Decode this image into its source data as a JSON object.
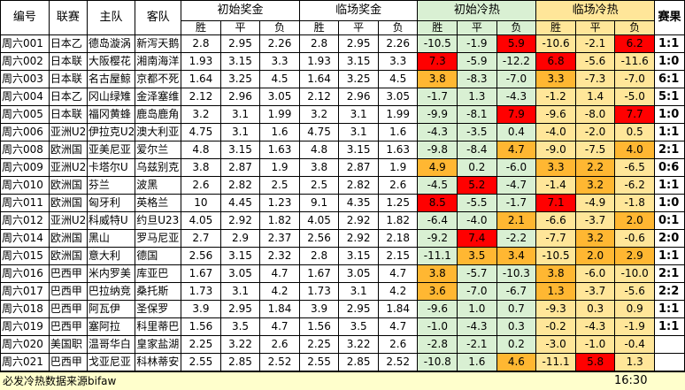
{
  "headers": {
    "id": "编号",
    "league": "联赛",
    "home": "主队",
    "away": "客队",
    "init_odds": "初始奖金",
    "live_odds": "临场奖金",
    "init_heat": "初始冷热",
    "live_heat": "临场冷热",
    "result": "赛果",
    "win": "胜",
    "draw": "平",
    "loss": "负"
  },
  "rows": [
    {
      "id": "周六001",
      "league": "日本乙",
      "home": "德岛漩涡",
      "away": "新泻天鹅",
      "io": [
        "2.8",
        "2.95",
        "2.26"
      ],
      "lo": [
        "2.8",
        "2.95",
        "2.26"
      ],
      "ih": [
        "-10.5",
        "-1.9",
        "5.9"
      ],
      "lh": [
        "-10.6",
        "-2.1",
        "6.2"
      ],
      "ihc": [
        "",
        "",
        "red"
      ],
      "lhc": [
        "",
        "",
        "red"
      ],
      "result": "1:1"
    },
    {
      "id": "周六002",
      "league": "日本联",
      "home": "大阪樱花",
      "away": "湘南海洋",
      "io": [
        "1.93",
        "3.15",
        "3.3"
      ],
      "lo": [
        "1.93",
        "3.15",
        "3.3"
      ],
      "ih": [
        "7.3",
        "-5.9",
        "-12.2"
      ],
      "lh": [
        "6.8",
        "-5.6",
        "-11.6"
      ],
      "ihc": [
        "red",
        "",
        ""
      ],
      "lhc": [
        "red",
        "",
        ""
      ],
      "result": "1:0"
    },
    {
      "id": "周六003",
      "league": "日本联",
      "home": "名古屋鲸",
      "away": "京都不死",
      "io": [
        "1.64",
        "3.25",
        "4.5"
      ],
      "lo": [
        "1.64",
        "3.25",
        "4.5"
      ],
      "ih": [
        "3.8",
        "-8.3",
        "-7.0"
      ],
      "lh": [
        "3.3",
        "-7.3",
        "-7.0"
      ],
      "ihc": [
        "org",
        "",
        ""
      ],
      "lhc": [
        "org",
        "",
        ""
      ],
      "result": "6:1"
    },
    {
      "id": "周六004",
      "league": "日本乙",
      "home": "冈山绿雉",
      "away": "金泽塞维",
      "io": [
        "2.12",
        "2.96",
        "3.05"
      ],
      "lo": [
        "2.12",
        "2.96",
        "3.05"
      ],
      "ih": [
        "-1.7",
        "1.3",
        "-4.3"
      ],
      "lh": [
        "-1.2",
        "1.4",
        "-5.0"
      ],
      "ihc": [
        "",
        "",
        ""
      ],
      "lhc": [
        "",
        "",
        ""
      ],
      "result": "5:1"
    },
    {
      "id": "周六005",
      "league": "日本联",
      "home": "福冈黄蜂",
      "away": "鹿岛鹿角",
      "io": [
        "3.2",
        "3.1",
        "1.99"
      ],
      "lo": [
        "3.2",
        "3.1",
        "1.99"
      ],
      "ih": [
        "-9.9",
        "-8.1",
        "7.9"
      ],
      "lh": [
        "-9.6",
        "-8.0",
        "7.7"
      ],
      "ihc": [
        "",
        "",
        "red"
      ],
      "lhc": [
        "",
        "",
        "red"
      ],
      "result": "1:0"
    },
    {
      "id": "周六006",
      "league": "亚洲U2",
      "home": "伊拉克U2",
      "away": "澳大利亚",
      "io": [
        "4.75",
        "3.1",
        "1.6"
      ],
      "lo": [
        "4.75",
        "3.1",
        "1.6"
      ],
      "ih": [
        "-4.3",
        "-3.5",
        "0.4"
      ],
      "lh": [
        "-4.0",
        "-2.0",
        "0.5"
      ],
      "ihc": [
        "",
        "",
        ""
      ],
      "lhc": [
        "",
        "",
        ""
      ],
      "result": "1:1"
    },
    {
      "id": "周六008",
      "league": "欧洲国",
      "home": "亚美尼亚",
      "away": "爱尔兰",
      "io": [
        "4.8",
        "3.15",
        "1.63"
      ],
      "lo": [
        "4.8",
        "3.15",
        "1.63"
      ],
      "ih": [
        "-9.8",
        "-8.4",
        "4.7"
      ],
      "lh": [
        "-9.0",
        "-7.5",
        "4.0"
      ],
      "ihc": [
        "",
        "",
        "org"
      ],
      "lhc": [
        "",
        "",
        "org"
      ],
      "result": "2:1"
    },
    {
      "id": "周六009",
      "league": "亚洲U2",
      "home": "卡塔尔U",
      "away": "乌兹别克",
      "io": [
        "3.8",
        "2.87",
        "1.9"
      ],
      "lo": [
        "3.8",
        "2.87",
        "1.9"
      ],
      "ih": [
        "4.9",
        "0.2",
        "-6.0"
      ],
      "lh": [
        "3.3",
        "2.2",
        "-6.5"
      ],
      "ihc": [
        "org",
        "",
        ""
      ],
      "lhc": [
        "org",
        "org",
        ""
      ],
      "result": "0:6"
    },
    {
      "id": "周六010",
      "league": "欧洲国",
      "home": "芬兰",
      "away": "波黑",
      "io": [
        "2.6",
        "2.82",
        "2.5"
      ],
      "lo": [
        "2.5",
        "2.82",
        "2.6"
      ],
      "ih": [
        "-4.5",
        "5.2",
        "-4.7"
      ],
      "lh": [
        "-1.4",
        "3.2",
        "-6.2"
      ],
      "ihc": [
        "",
        "red",
        ""
      ],
      "lhc": [
        "",
        "org",
        ""
      ],
      "result": "1:1"
    },
    {
      "id": "周六011",
      "league": "欧洲国",
      "home": "匈牙利",
      "away": "英格兰",
      "io": [
        "10",
        "4.45",
        "1.23"
      ],
      "lo": [
        "9.1",
        "4.35",
        "1.25"
      ],
      "ih": [
        "8.5",
        "-5.5",
        "-1.7"
      ],
      "lh": [
        "7.1",
        "-4.9",
        "-1.8"
      ],
      "ihc": [
        "red",
        "",
        ""
      ],
      "lhc": [
        "red",
        "",
        ""
      ],
      "result": "1:0"
    },
    {
      "id": "周六012",
      "league": "亚洲U2",
      "home": "科威特U",
      "away": "约旦U23",
      "io": [
        "4.05",
        "2.92",
        "1.82"
      ],
      "lo": [
        "4.05",
        "2.92",
        "1.82"
      ],
      "ih": [
        "-6.4",
        "-4.0",
        "2.1"
      ],
      "lh": [
        "-6.6",
        "-3.7",
        "2.0"
      ],
      "ihc": [
        "",
        "",
        "org"
      ],
      "lhc": [
        "",
        "",
        "org"
      ],
      "result": "0:1"
    },
    {
      "id": "周六014",
      "league": "欧洲国",
      "home": "黑山",
      "away": "罗马尼亚",
      "io": [
        "2.7",
        "2.9",
        "2.37"
      ],
      "lo": [
        "2.56",
        "2.92",
        "2.18"
      ],
      "ih": [
        "-9.2",
        "7.4",
        "-2.2"
      ],
      "lh": [
        "-7.7",
        "3.2",
        "-0.6"
      ],
      "ihc": [
        "",
        "red",
        ""
      ],
      "lhc": [
        "",
        "org",
        ""
      ],
      "result": "2:0"
    },
    {
      "id": "周六015",
      "league": "欧洲国",
      "home": "意大利",
      "away": "德国",
      "io": [
        "2.56",
        "3.15",
        "2.32"
      ],
      "lo": [
        "2.8",
        "3.15",
        "2.15"
      ],
      "ih": [
        "-11.1",
        "3.5",
        "3.4"
      ],
      "lh": [
        "-10.5",
        "2.0",
        "2.9"
      ],
      "ihc": [
        "",
        "org",
        "org"
      ],
      "lhc": [
        "",
        "org",
        "org"
      ],
      "result": "1:1"
    },
    {
      "id": "周六016",
      "league": "巴西甲",
      "home": "米内罗美",
      "away": "库亚巴",
      "io": [
        "1.67",
        "3.05",
        "4.7"
      ],
      "lo": [
        "1.67",
        "3.05",
        "4.7"
      ],
      "ih": [
        "3.8",
        "-5.7",
        "-10.3"
      ],
      "lh": [
        "3.8",
        "-6.0",
        "-10.0"
      ],
      "ihc": [
        "org",
        "",
        ""
      ],
      "lhc": [
        "org",
        "",
        ""
      ],
      "result": "2:1"
    },
    {
      "id": "周六017",
      "league": "巴西甲",
      "home": "巴拉纳竞",
      "away": "桑托斯",
      "io": [
        "1.73",
        "3.1",
        "4.2"
      ],
      "lo": [
        "1.73",
        "3.1",
        "4.2"
      ],
      "ih": [
        "3.6",
        "-7.0",
        "-6.7"
      ],
      "lh": [
        "1.3",
        "-3.7",
        "-5.6"
      ],
      "ihc": [
        "org",
        "",
        ""
      ],
      "lhc": [
        "org",
        "",
        ""
      ],
      "result": "2:2"
    },
    {
      "id": "周六018",
      "league": "巴西甲",
      "home": "阿瓦伊",
      "away": "圣保罗",
      "io": [
        "3.9",
        "2.95",
        "1.84"
      ],
      "lo": [
        "3.9",
        "2.95",
        "1.84"
      ],
      "ih": [
        "-9.6",
        "1.0",
        "0.7"
      ],
      "lh": [
        "-9.3",
        "0.3",
        "0.9"
      ],
      "ihc": [
        "",
        "",
        ""
      ],
      "lhc": [
        "",
        "",
        ""
      ],
      "result": "1:1"
    },
    {
      "id": "周六019",
      "league": "巴西甲",
      "home": "塞阿拉",
      "away": "科里蒂巴",
      "io": [
        "1.56",
        "3.5",
        "4.7"
      ],
      "lo": [
        "1.56",
        "3.5",
        "4.7"
      ],
      "ih": [
        "-1.0",
        "-4.3",
        "0.3"
      ],
      "lh": [
        "-0.2",
        "-4.3",
        "-1.9"
      ],
      "ihc": [
        "",
        "",
        ""
      ],
      "lhc": [
        "",
        "",
        ""
      ],
      "result": "1:1"
    },
    {
      "id": "周六020",
      "league": "美国职",
      "home": "温哥华白",
      "away": "皇家盐湖",
      "io": [
        "2.25",
        "3.22",
        "2.6"
      ],
      "lo": [
        "2.25",
        "3.22",
        "2.6"
      ],
      "ih": [
        "-2.8",
        "-2.1",
        "0.2"
      ],
      "lh": [
        "-3.0",
        "-1.0",
        "-0.4"
      ],
      "ihc": [
        "",
        "",
        ""
      ],
      "lhc": [
        "",
        "",
        ""
      ],
      "result": ""
    },
    {
      "id": "周六021",
      "league": "巴西甲",
      "home": "戈亚尼亚",
      "away": "科林蒂安",
      "io": [
        "2.55",
        "2.85",
        "2.52"
      ],
      "lo": [
        "2.55",
        "2.85",
        "2.52"
      ],
      "ih": [
        "-10.8",
        "1.6",
        "4.6"
      ],
      "lh": [
        "-11.1",
        "5.8",
        "1.3"
      ],
      "ihc": [
        "",
        "",
        "org"
      ],
      "lhc": [
        "",
        "red",
        ""
      ],
      "result": ""
    }
  ],
  "footer": {
    "note": "必发冷热数据来源bifaw",
    "time": "16:30"
  }
}
